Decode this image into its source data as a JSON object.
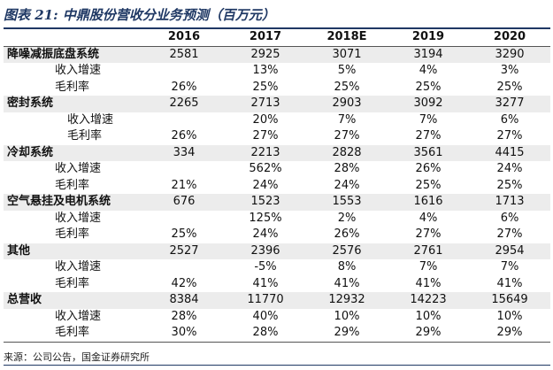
{
  "title": "图表 21:  中鼎股份营收分业务预测（百万元）",
  "table": {
    "header": [
      "",
      "2016",
      "2017",
      "2018E",
      "2019",
      "2020"
    ],
    "rows": [
      {
        "type": "seg",
        "cells": [
          "降噪减振底盘系统",
          "2581",
          "2925",
          "3071",
          "3194",
          "3290"
        ]
      },
      {
        "type": "sub",
        "cells": [
          "收入增速",
          "",
          "13%",
          "5%",
          "4%",
          "3%"
        ]
      },
      {
        "type": "sub",
        "cells": [
          "毛利率",
          "26%",
          "25%",
          "25%",
          "25%",
          "25%"
        ]
      },
      {
        "type": "seg",
        "cells": [
          "密封系统",
          "2265",
          "2713",
          "2903",
          "3092",
          "3277"
        ]
      },
      {
        "type": "subdeep",
        "cells": [
          "收入增速",
          "",
          "20%",
          "7%",
          "7%",
          "6%"
        ]
      },
      {
        "type": "subdeep",
        "cells": [
          "毛利率",
          "26%",
          "27%",
          "27%",
          "27%",
          "27%"
        ]
      },
      {
        "type": "seg",
        "cells": [
          "冷却系统",
          "334",
          "2213",
          "2828",
          "3561",
          "4415"
        ]
      },
      {
        "type": "sub",
        "cells": [
          "收入增速",
          "",
          "562%",
          "28%",
          "26%",
          "24%"
        ]
      },
      {
        "type": "sub",
        "cells": [
          "毛利率",
          "21%",
          "24%",
          "24%",
          "25%",
          "25%"
        ]
      },
      {
        "type": "seg",
        "cells": [
          "空气悬挂及电机系统",
          "676",
          "1523",
          "1553",
          "1616",
          "1713"
        ]
      },
      {
        "type": "sub",
        "cells": [
          "收入增速",
          "",
          "125%",
          "2%",
          "4%",
          "6%"
        ]
      },
      {
        "type": "sub",
        "cells": [
          "毛利率",
          "25%",
          "24%",
          "26%",
          "27%",
          "27%"
        ]
      },
      {
        "type": "seg",
        "cells": [
          "其他",
          "2527",
          "2396",
          "2576",
          "2761",
          "2954"
        ]
      },
      {
        "type": "sub",
        "cells": [
          "收入增速",
          "",
          "-5%",
          "8%",
          "7%",
          "7%"
        ]
      },
      {
        "type": "sub",
        "cells": [
          "毛利率",
          "42%",
          "41%",
          "41%",
          "41%",
          "41%"
        ]
      },
      {
        "type": "seg",
        "cells": [
          "总营收",
          "8384",
          "11770",
          "12932",
          "14223",
          "15649"
        ]
      },
      {
        "type": "sub",
        "cells": [
          "收入增速",
          "28%",
          "40%",
          "10%",
          "10%",
          "10%"
        ]
      },
      {
        "type": "sub",
        "cells": [
          "毛利率",
          "30%",
          "28%",
          "29%",
          "29%",
          "29%"
        ]
      }
    ]
  },
  "source": "来源：公司公告，国金证券研究所",
  "colors": {
    "title": "#1f3864",
    "segment_row_bg": "#ececec"
  }
}
